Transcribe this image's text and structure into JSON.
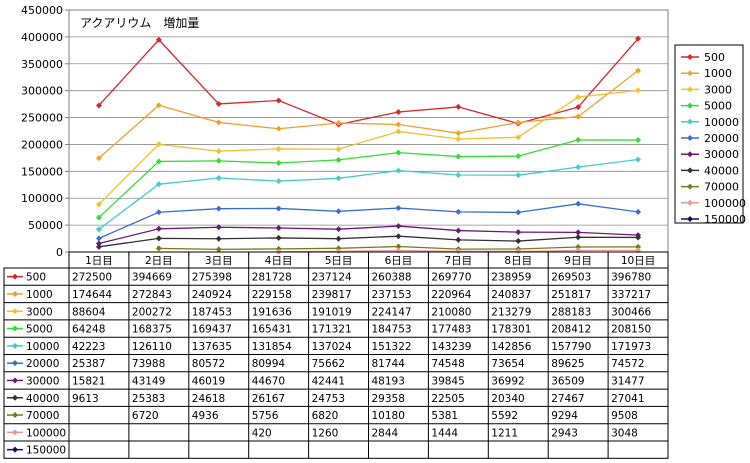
{
  "chart_data": {
    "type": "line",
    "title": "アクアリウム　増加量",
    "xlabel": "",
    "ylabel": "",
    "ylim": [
      0,
      450000
    ],
    "yticks": [
      0,
      50000,
      100000,
      150000,
      200000,
      250000,
      300000,
      350000,
      400000,
      450000
    ],
    "grid": true,
    "legend_position": "right",
    "categories": [
      "1日目",
      "2日目",
      "3日目",
      "4日目",
      "5日目",
      "6日目",
      "7日目",
      "8日目",
      "9日目",
      "10日目"
    ],
    "series": [
      {
        "name": "500",
        "color": "#d62828",
        "values": [
          272500,
          394669,
          275398,
          281728,
          237124,
          260388,
          269770,
          238959,
          269503,
          396780
        ]
      },
      {
        "name": "1000",
        "color": "#f0a22e",
        "values": [
          174644,
          272843,
          240924,
          229158,
          239817,
          237153,
          220964,
          240837,
          251817,
          337217
        ]
      },
      {
        "name": "3000",
        "color": "#f2c12e",
        "values": [
          88604,
          200272,
          187453,
          191636,
          191019,
          224147,
          210080,
          213279,
          288183,
          300466
        ]
      },
      {
        "name": "5000",
        "color": "#33dd33",
        "values": [
          64248,
          168375,
          169437,
          165431,
          171321,
          184753,
          177483,
          178301,
          208412,
          208150
        ]
      },
      {
        "name": "10000",
        "color": "#44cccc",
        "values": [
          42223,
          126110,
          137635,
          131854,
          137024,
          151322,
          143239,
          142856,
          157790,
          171973
        ]
      },
      {
        "name": "20000",
        "color": "#3a6fd0",
        "values": [
          25387,
          73988,
          80572,
          80994,
          75662,
          81744,
          74548,
          73654,
          89625,
          74572
        ]
      },
      {
        "name": "30000",
        "color": "#6a1a7a",
        "values": [
          15821,
          43149,
          46019,
          44670,
          42441,
          48193,
          39845,
          36992,
          36509,
          31477
        ]
      },
      {
        "name": "40000",
        "color": "#333333",
        "values": [
          9613,
          25383,
          24618,
          26167,
          24753,
          29358,
          22505,
          20340,
          27467,
          27041
        ]
      },
      {
        "name": "70000",
        "color": "#7a7a1a",
        "values": [
          null,
          6720,
          4936,
          5756,
          6820,
          10180,
          5381,
          5592,
          9294,
          9508
        ]
      },
      {
        "name": "100000",
        "color": "#e89a9a",
        "values": [
          null,
          null,
          null,
          420,
          1260,
          2844,
          1444,
          1211,
          2943,
          3048
        ]
      },
      {
        "name": "150000",
        "color": "#101060",
        "values": [
          null,
          null,
          null,
          null,
          null,
          null,
          null,
          null,
          null,
          null
        ]
      }
    ],
    "table_values": [
      [
        "272500",
        "394669",
        "275398",
        "281728",
        "237124",
        "260388",
        "269770",
        "238959",
        "269503",
        "396780"
      ],
      [
        "174644",
        "272843",
        "240924",
        "229158",
        "239817",
        "237153",
        "220964",
        "240837",
        "251817",
        "337217"
      ],
      [
        "88604",
        "200272",
        "187453",
        "191636",
        "191019",
        "224147",
        "210080",
        "213279",
        "288183",
        "300466"
      ],
      [
        "64248",
        "168375",
        "169437",
        "165431",
        "171321",
        "184753",
        "177483",
        "178301",
        "208412",
        "208150"
      ],
      [
        "42223",
        "126110",
        "137635",
        "131854",
        "137024",
        "151322",
        "143239",
        "142856",
        "157790",
        "171973"
      ],
      [
        "25387",
        "73988",
        "80572",
        "80994",
        "75662",
        "81744",
        "74548",
        "73654",
        "89625",
        "74572"
      ],
      [
        "15821",
        "43149",
        "46019",
        "44670",
        "42441",
        "48193",
        "39845",
        "36992",
        "36509",
        "31477"
      ],
      [
        "9613",
        "25383",
        "24618",
        "26167",
        "24753",
        "29358",
        "22505",
        "20340",
        "27467",
        "27041"
      ],
      [
        "",
        "6720",
        "4936",
        "5756",
        "6820",
        "10180",
        "5381",
        "5592",
        "9294",
        "9508"
      ],
      [
        "",
        "",
        "",
        "420",
        "1260",
        "2844",
        "1444",
        "1211",
        "2943",
        "3048"
      ],
      [
        "",
        "",
        "",
        "",
        "",
        "",
        "",
        "",
        "",
        ""
      ]
    ]
  }
}
